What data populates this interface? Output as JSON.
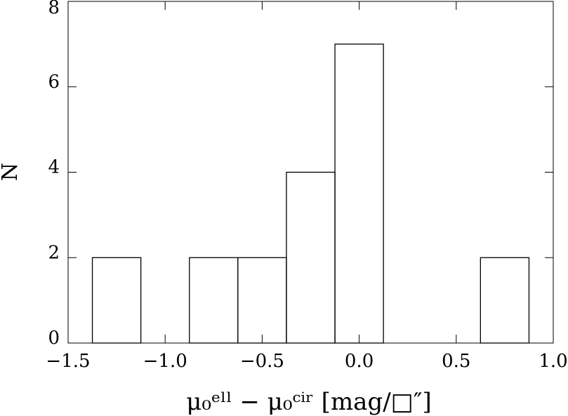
{
  "chart_data": {
    "type": "histogram",
    "bins": [
      -1.375,
      -1.125,
      -0.875,
      -0.625,
      -0.375,
      -0.125,
      0.125,
      0.375,
      0.625,
      0.875
    ],
    "values": [
      2,
      0,
      2,
      2,
      4,
      7,
      0,
      0,
      2
    ],
    "color": "#000000",
    "xlim": [
      -1.5,
      1.0
    ],
    "ylim": [
      0,
      8
    ],
    "xticks": [
      {
        "value": -1.5,
        "label": "−1.5"
      },
      {
        "value": -1.0,
        "label": "−1.0"
      },
      {
        "value": -0.5,
        "label": "−0.5"
      },
      {
        "value": 0.0,
        "label": "0.0"
      },
      {
        "value": 0.5,
        "label": "0.5"
      },
      {
        "value": 1.0,
        "label": "1.0"
      }
    ],
    "yticks": [
      0,
      2,
      4,
      6,
      8
    ],
    "xlabel": "μ₀ᵉˡˡ − μ₀ᶜⁱʳ [mag/□″]",
    "ylabel": "N"
  }
}
